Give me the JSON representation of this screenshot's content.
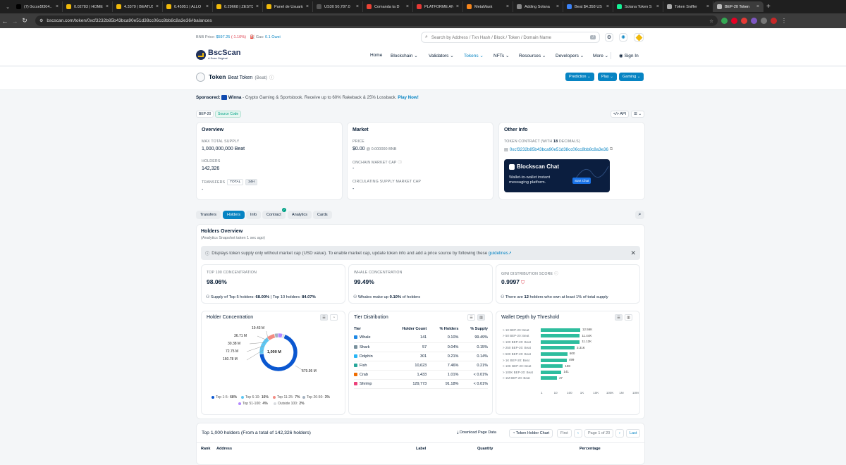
{
  "browser": {
    "tabs": [
      {
        "title": "(7) 0xcce5f304..",
        "fav": "#000000"
      },
      {
        "title": "0.02783 | HOME",
        "fav": "#f0b90b"
      },
      {
        "title": "4.3379 | BEATUS",
        "fav": "#f0b90b"
      },
      {
        "title": "0.45951 | ALLO",
        "fav": "#f0b90b"
      },
      {
        "title": "0.29668 | ZESTD",
        "fav": "#f0b90b"
      },
      {
        "title": "Panel de Usuario",
        "fav": "#f0b90b"
      },
      {
        "title": "US30 50,787.0",
        "fav": "#555555"
      },
      {
        "title": "Comanda ta D",
        "fav": "#ea4335"
      },
      {
        "title": "PLATFORME AN",
        "fav": "#e53935"
      },
      {
        "title": "MetaMask",
        "fav": "#f6851b"
      },
      {
        "title": "Adding Solana",
        "fav": "#888888"
      },
      {
        "title": "Beat $4.358 US",
        "fav": "#3b82f6"
      },
      {
        "title": "Solana Token S",
        "fav": "#14f195"
      },
      {
        "title": "Token Sniffer",
        "fav": "#aaaaaa"
      },
      {
        "title": "BEP-20 Token",
        "fav": "#bbbbbb"
      }
    ],
    "url": "bscscan.com/token/0xcf3232b85b43bca90e51d38cc06cc8bb8c8a3e36#balances"
  },
  "top": {
    "bnb_label": "BNB Price:",
    "bnb_price": "$597.25",
    "bnb_change": "(-1.10%)",
    "gas_label": "Gas:",
    "gas_value": "0.1 Gwei",
    "search_placeholder": "Search by Address / Txn Hash / Block / Token / Domain Name",
    "slash": "/"
  },
  "nav": {
    "logo": "BscScan",
    "logo_sub": "A Scan Original",
    "items": [
      "Home",
      "Blockchain",
      "Validators",
      "Tokens",
      "NFTs",
      "Resources",
      "Developers",
      "More"
    ],
    "signin": "Sign In"
  },
  "token": {
    "kind": "Token",
    "name": "Beat Token",
    "symbol": "(Beat)",
    "buttons": [
      "Prediction",
      "Play",
      "Gaming"
    ]
  },
  "sponsored": {
    "label": "Sponsored:",
    "brand": "Winna",
    "text": "- Crypto Gaming & Sportsbook. Receive up to 60% Rakeback & 25% Lossback.",
    "cta": "Play Now!"
  },
  "badges": {
    "bep": "BEP-20",
    "source": "Source Code",
    "api": "API"
  },
  "overview": {
    "title": "Overview",
    "max_supply_label": "MAX TOTAL SUPPLY",
    "max_supply": "1,000,000,000 Beat",
    "holders_label": "HOLDERS",
    "holders": "142,326",
    "transfers_label": "TRANSFERS",
    "transfers_total": "TOTAL",
    "transfers_24h": "24H",
    "transfers_value": "-"
  },
  "market": {
    "title": "Market",
    "price_label": "PRICE",
    "price": "$0.00",
    "price_bnb": "@ 0.000000 BNB",
    "onchain_label": "ONCHAIN MARKET CAP",
    "onchain_value": "-",
    "circ_label": "CIRCULATING SUPPLY MARKET CAP",
    "circ_value": "-"
  },
  "other": {
    "title": "Other Info",
    "contract_label_a": "TOKEN CONTRACT (WITH ",
    "decimals": "18",
    "contract_label_b": " DECIMALS)",
    "contract": "0xcf3232b85b43bca90e51d38cc06cc8bb8c8a3e36",
    "ad_title": "Blockscan Chat",
    "ad_text": "Wallet-to-wallet instant messaging platform.",
    "ad_btn": "Start Chat"
  },
  "tabs2": [
    "Transfers",
    "Holders",
    "Info",
    "Contract",
    "Analytics",
    "Cards"
  ],
  "holders": {
    "title": "Holders Overview",
    "snapshot": "(Analytics Snapshot taken 1 sec ago)",
    "notice": "Displays token supply only without market cap (USD value). To enable market cap, update token info and add a price source by following these",
    "notice_link": "guidelines",
    "top100_label": "TOP 100 CONCENTRATION",
    "top100": "98.06%",
    "whale_label": "WHALE CONCENTRATION",
    "whale": "99.49%",
    "gini_label": "GINI DISTRIBUTION SCORE",
    "gini": "0.9997",
    "supply_a": "Supply of Top 5 holders: ",
    "top5": "68.00%",
    "supply_b": " | Top 10 holders: ",
    "top10": "84.07%",
    "whale_a": "Whales make up ",
    "whale_pct": "0.10%",
    "whale_b": " of holders",
    "gini_a": "There are ",
    "gini_n": "12",
    "gini_b": " holders who own at least 1% of total supply"
  },
  "holder_conc": {
    "title": "Holder Concentration",
    "center": "1,000 M",
    "labels": [
      "19.43 M",
      "36.71 M",
      "30.38 M",
      "72.75 M",
      "160.78 M",
      "679.95 M"
    ],
    "legend": [
      {
        "name": "Top 1-5:",
        "pct": "68%",
        "color": "#0b57d0"
      },
      {
        "name": "Top 6-10:",
        "pct": "16%",
        "color": "#5ec6f2"
      },
      {
        "name": "Top 11-25:",
        "pct": "7%",
        "color": "#f28b82"
      },
      {
        "name": "Top 26-50:",
        "pct": "3%",
        "color": "#a3b1bf"
      },
      {
        "name": "Top 51-100:",
        "pct": "4%",
        "color": "#b388ff"
      },
      {
        "name": "Outside 100:",
        "pct": "2%",
        "color": "#dadce0"
      }
    ]
  },
  "tier": {
    "title": "Tier Distribution",
    "headers": [
      "Tier",
      "Holder Count",
      "% Holders",
      "% Supply"
    ],
    "rows": [
      {
        "tier": "Whale",
        "count": "141",
        "holders": "0.10%",
        "supply": "99.49%",
        "color": "#1e88e5"
      },
      {
        "tier": "Shark",
        "count": "57",
        "holders": "0.04%",
        "supply": "0.15%",
        "color": "#78909c"
      },
      {
        "tier": "Dolphin",
        "count": "301",
        "holders": "0.21%",
        "supply": "0.14%",
        "color": "#29b6f6"
      },
      {
        "tier": "Fish",
        "count": "10,623",
        "holders": "7.46%",
        "supply": "0.21%",
        "color": "#26a69a"
      },
      {
        "tier": "Crab",
        "count": "1,433",
        "holders": "1.01%",
        "supply": "< 0.01%",
        "color": "#ef6c00"
      },
      {
        "tier": "Shrimp",
        "count": "129,773",
        "holders": "91.18%",
        "supply": "< 0.01%",
        "color": "#ec407a"
      }
    ]
  },
  "wallet": {
    "title": "Wallet Depth by Threshold",
    "rows": [
      {
        "label": "> 10 BEP-20: Beat",
        "value": "12.56K",
        "n": 12560
      },
      {
        "label": "> 50 BEP-20: Beat",
        "value": "11.44K",
        "n": 11440
      },
      {
        "label": "> 100 BEP-20: Beat",
        "value": "11.12K",
        "n": 11120
      },
      {
        "label": "> 250 BEP-20: Beat",
        "value": "3.31K",
        "n": 3310
      },
      {
        "label": "> 500 BEP-20: Beat",
        "value": "600",
        "n": 600
      },
      {
        "label": "> 1K BEP-20: Beat",
        "value": "499",
        "n": 499
      },
      {
        "label": "> 10K BEP-20: Beat",
        "value": "198",
        "n": 198
      },
      {
        "label": "> 100K BEP-20: Beat",
        "value": "141",
        "n": 141
      },
      {
        "label": "> 1M BEP-20: Beat",
        "value": "47",
        "n": 47
      }
    ],
    "axis": [
      "1",
      "10",
      "100",
      "1K",
      "10K",
      "100K",
      "1M",
      "10M"
    ]
  },
  "bottom": {
    "title": "Top 1,000 holders (From a total of 142,326 holders)",
    "download": "Download Page Data",
    "chart": "Token Holder Chart",
    "first": "First",
    "page": "Page 1 of 20",
    "last": "Last",
    "cols": [
      "Rank",
      "Address",
      "Label",
      "Quantity",
      "Percentage"
    ]
  }
}
